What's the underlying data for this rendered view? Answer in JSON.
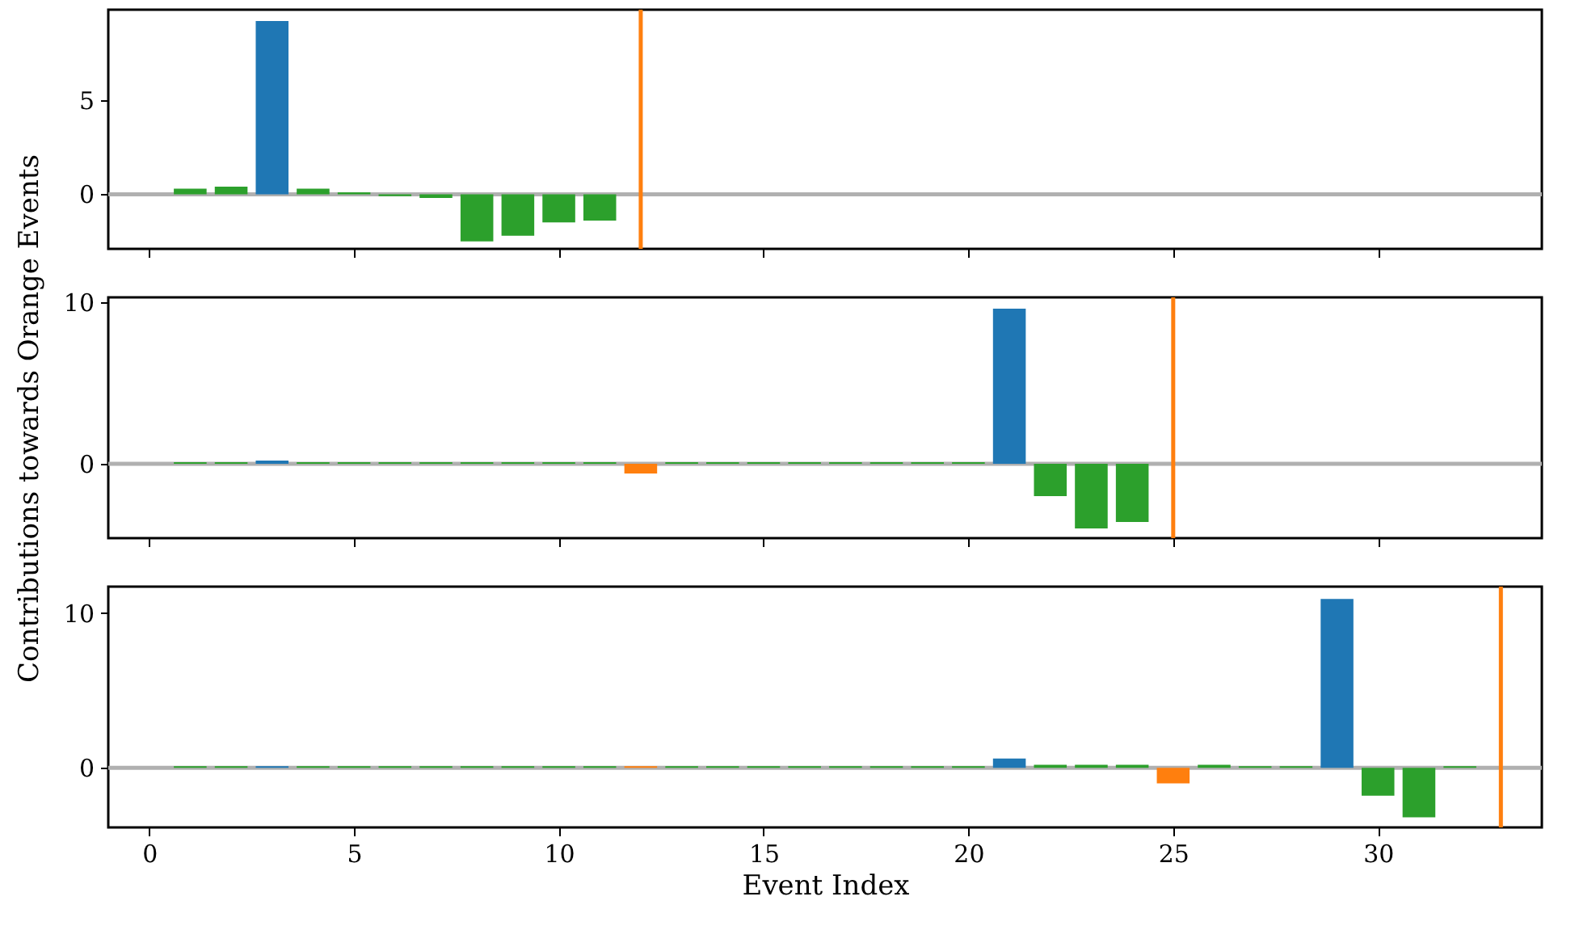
{
  "chart_data": [
    {
      "type": "bar",
      "x": [
        1,
        2,
        3,
        4,
        5,
        6,
        7,
        8,
        9,
        10,
        11
      ],
      "values": [
        0.3,
        0.4,
        9.2,
        0.3,
        0.1,
        -0.1,
        -0.2,
        -2.5,
        -2.2,
        -1.5,
        -1.4
      ],
      "colors": [
        "#2ca02c",
        "#2ca02c",
        "#1f77b4",
        "#2ca02c",
        "#2ca02c",
        "#2ca02c",
        "#2ca02c",
        "#2ca02c",
        "#2ca02c",
        "#2ca02c",
        "#2ca02c"
      ],
      "xlim": [
        -1,
        34
      ],
      "ylim": [
        -2.9,
        9.8
      ],
      "xticks": [
        0,
        5,
        10,
        15,
        20,
        25,
        30
      ],
      "yticks": [
        0,
        5
      ],
      "tick_labels": "y",
      "ref_lines": [
        {
          "axis": "y",
          "value": 0,
          "color": "#b0b0b0"
        },
        {
          "axis": "x",
          "value": 12,
          "color": "#ff7f0e"
        }
      ]
    },
    {
      "type": "bar",
      "ylabel": "Contributions towards Orange Events",
      "x": [
        1,
        2,
        3,
        4,
        5,
        6,
        7,
        8,
        9,
        10,
        11,
        12,
        13,
        14,
        15,
        16,
        17,
        18,
        19,
        20,
        21,
        22,
        23,
        24
      ],
      "values": [
        0.1,
        0.1,
        0.2,
        0.1,
        0.1,
        0.1,
        0.1,
        0.1,
        0.1,
        0.1,
        0.1,
        -0.6,
        0.1,
        0.1,
        0.1,
        0.1,
        0.1,
        0.1,
        0.1,
        0.1,
        9.6,
        -2.0,
        -4.0,
        -3.6
      ],
      "colors": [
        "#2ca02c",
        "#2ca02c",
        "#1f77b4",
        "#2ca02c",
        "#2ca02c",
        "#2ca02c",
        "#2ca02c",
        "#2ca02c",
        "#2ca02c",
        "#2ca02c",
        "#2ca02c",
        "#ff7f0e",
        "#2ca02c",
        "#2ca02c",
        "#2ca02c",
        "#2ca02c",
        "#2ca02c",
        "#2ca02c",
        "#2ca02c",
        "#2ca02c",
        "#1f77b4",
        "#2ca02c",
        "#2ca02c",
        "#2ca02c"
      ],
      "xlim": [
        -1,
        34
      ],
      "ylim": [
        -4.6,
        10.3
      ],
      "xticks": [
        0,
        5,
        10,
        15,
        20,
        25,
        30
      ],
      "yticks": [
        0,
        10
      ],
      "tick_labels": "y",
      "ref_lines": [
        {
          "axis": "y",
          "value": 0,
          "color": "#b0b0b0"
        },
        {
          "axis": "x",
          "value": 25,
          "color": "#ff7f0e"
        }
      ]
    },
    {
      "type": "bar",
      "xlabel": "Event Index",
      "x": [
        1,
        2,
        3,
        4,
        5,
        6,
        7,
        8,
        9,
        10,
        11,
        12,
        13,
        14,
        15,
        16,
        17,
        18,
        19,
        20,
        21,
        22,
        23,
        24,
        25,
        26,
        27,
        28,
        29,
        30,
        31,
        32
      ],
      "values": [
        0.1,
        0.1,
        0.1,
        0.1,
        0.1,
        0.1,
        0.1,
        0.1,
        0.1,
        0.1,
        0.1,
        0.1,
        0.1,
        0.1,
        0.1,
        0.1,
        0.1,
        0.1,
        0.1,
        0.1,
        0.6,
        0.2,
        0.2,
        0.2,
        -1.0,
        0.2,
        0.1,
        0.1,
        10.9,
        -1.8,
        -3.2,
        0.1
      ],
      "colors": [
        "#2ca02c",
        "#2ca02c",
        "#1f77b4",
        "#2ca02c",
        "#2ca02c",
        "#2ca02c",
        "#2ca02c",
        "#2ca02c",
        "#2ca02c",
        "#2ca02c",
        "#2ca02c",
        "#ff7f0e",
        "#2ca02c",
        "#2ca02c",
        "#2ca02c",
        "#2ca02c",
        "#2ca02c",
        "#2ca02c",
        "#2ca02c",
        "#2ca02c",
        "#1f77b4",
        "#2ca02c",
        "#2ca02c",
        "#2ca02c",
        "#ff7f0e",
        "#2ca02c",
        "#2ca02c",
        "#2ca02c",
        "#1f77b4",
        "#2ca02c",
        "#2ca02c",
        "#2ca02c"
      ],
      "xlim": [
        -1,
        34
      ],
      "ylim": [
        -3.85,
        11.7
      ],
      "xticks": [
        0,
        5,
        10,
        15,
        20,
        25,
        30
      ],
      "yticks": [
        0,
        10
      ],
      "ref_lines": [
        {
          "axis": "y",
          "value": 0,
          "color": "#b0b0b0"
        },
        {
          "axis": "x",
          "value": 33,
          "color": "#ff7f0e"
        }
      ]
    }
  ]
}
